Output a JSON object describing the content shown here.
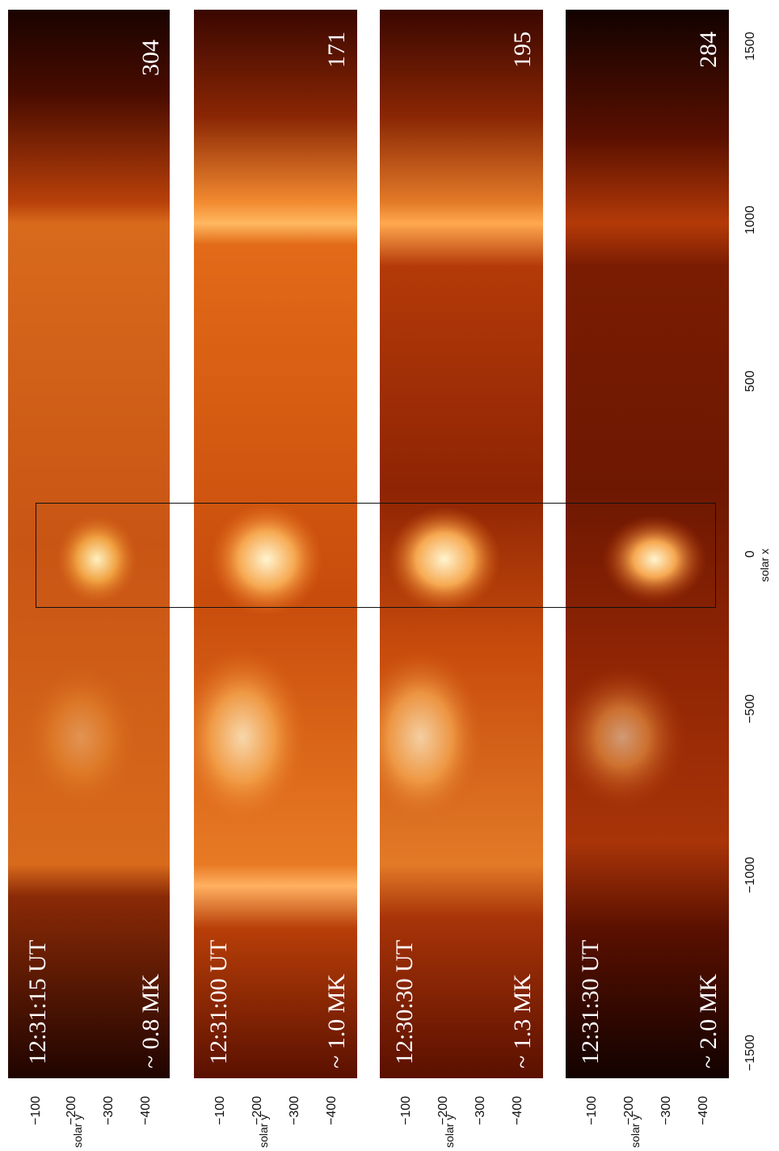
{
  "panels": [
    {
      "time": "12:31:15 UT",
      "temp": "~ 0.8 MK",
      "wavelength": "304"
    },
    {
      "time": "12:31:00 UT",
      "temp": "~ 1.0 MK",
      "wavelength": "171"
    },
    {
      "time": "12:30:30 UT",
      "temp": "~ 1.3 MK",
      "wavelength": "195"
    },
    {
      "time": "12:31:30 UT",
      "temp": "~ 2.0 MK",
      "wavelength": "284"
    }
  ],
  "x_axis": {
    "label": "solar x",
    "ticks": [
      "−1500",
      "−1000",
      "−500",
      "0",
      "500",
      "1000",
      "1500"
    ]
  },
  "y_axis": {
    "label": "solar y",
    "ticks": [
      "−100",
      "−200",
      "−300",
      "−400"
    ]
  },
  "colors": {
    "dark": "#1a0300",
    "mid": "#c23b06",
    "bright": "#ffd78a"
  }
}
